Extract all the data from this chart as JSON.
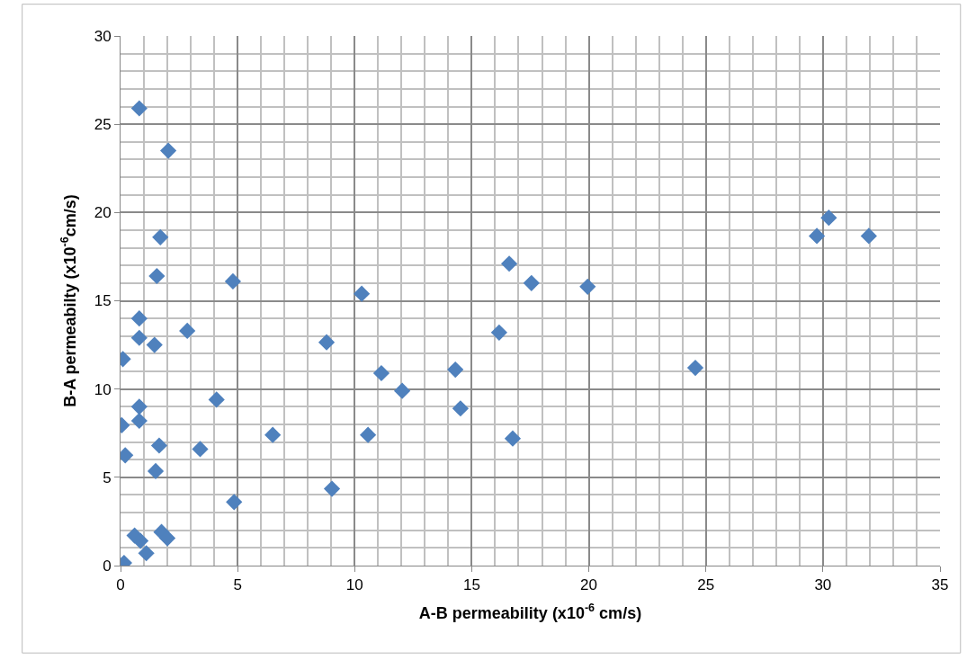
{
  "chart_data": {
    "type": "scatter",
    "xlabel": "A-B permeability (x10$^{-6}$ cm/s)",
    "ylabel": "B-A permeabilty (x10$^{-6}$cm/s)",
    "x": [
      0.8,
      2.04,
      1.7,
      1.55,
      4.8,
      0.8,
      0.8,
      1.45,
      2.85,
      0.1,
      0.8,
      0.8,
      0.05,
      0.2,
      1.65,
      1.5,
      4.1,
      3.4,
      4.85,
      0.6,
      0.85,
      1.1,
      1.75,
      2.0,
      0.15,
      16.6,
      17.55,
      19.95,
      10.3,
      8.8,
      16.17,
      11.14,
      12.03,
      14.3,
      14.52,
      10.57,
      16.75,
      24.55,
      9.03,
      6.5,
      29.74,
      31.96,
      30.25
    ],
    "series": [
      {
        "color": "#4f81bd",
        "values": [
          25.9,
          23.5,
          18.6,
          16.4,
          16.1,
          14.0,
          12.9,
          12.5,
          13.3,
          11.7,
          9.0,
          8.2,
          7.95,
          6.25,
          6.8,
          5.35,
          9.4,
          6.6,
          3.6,
          1.7,
          1.4,
          0.7,
          1.9,
          1.55,
          0.15,
          17.1,
          16.0,
          15.8,
          15.4,
          12.65,
          13.2,
          10.9,
          9.9,
          11.1,
          8.9,
          7.4,
          7.2,
          11.2,
          4.35,
          7.4,
          18.67,
          18.67,
          19.7
        ]
      }
    ],
    "xlim": [
      0,
      35
    ],
    "xticks": [
      0,
      5,
      10,
      15,
      20,
      25,
      30,
      35
    ],
    "ylim": [
      0,
      30
    ],
    "yticks": [
      0,
      5,
      10,
      15,
      20,
      25,
      30
    ],
    "grid": true,
    "marker": "diamond"
  }
}
